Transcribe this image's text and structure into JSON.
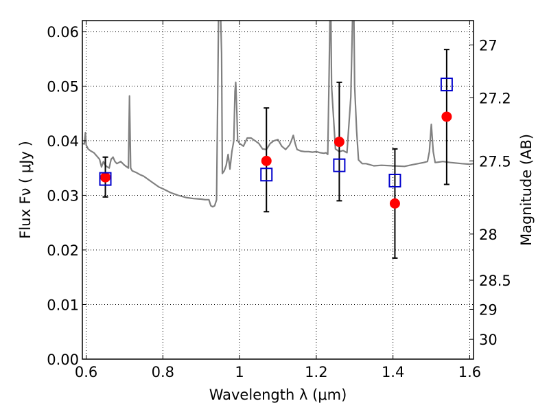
{
  "chart_data": {
    "type": "scatter",
    "xlabel": "Wavelength  λ (μm)",
    "ylabel": "Flux  Fν ( μJy )",
    "ylabel2": "Magnitude (AB)",
    "xlim": [
      0.59,
      1.61
    ],
    "ylim": [
      0.0,
      0.062
    ],
    "grid": true,
    "x_ticks": [
      0.6,
      0.8,
      1.0,
      1.2,
      1.4,
      1.6
    ],
    "x_tick_labels": [
      "0.6",
      "0.8",
      "1",
      "1.2",
      "1.4",
      "1.6"
    ],
    "y_ticks": [
      0.0,
      0.01,
      0.02,
      0.03,
      0.04,
      0.05,
      0.06
    ],
    "y_tick_labels": [
      "0.00",
      "0.01",
      "0.02",
      "0.03",
      "0.04",
      "0.05",
      "0.06"
    ],
    "mag_ticks": [
      27,
      27.2,
      27.5,
      28,
      28.5,
      29,
      30
    ],
    "mag_tick_labels": [
      "27",
      "27.2",
      "27.5",
      "28",
      "28.5",
      "29",
      "30"
    ],
    "observed": {
      "marker": "filled-circle",
      "color": "#ff0000",
      "x": [
        0.65,
        1.07,
        1.26,
        1.405,
        1.54
      ],
      "y": [
        0.0333,
        0.0363,
        0.0398,
        0.0285,
        0.0444
      ],
      "yerr_low": [
        0.0297,
        0.027,
        0.029,
        0.0185,
        0.032
      ],
      "yerr_high": [
        0.037,
        0.046,
        0.0507,
        0.0385,
        0.0567
      ]
    },
    "model_photometry": {
      "marker": "open-square",
      "color": "#0000cc",
      "x": [
        0.65,
        1.07,
        1.26,
        1.405,
        1.54
      ],
      "y": [
        0.033,
        0.0338,
        0.0355,
        0.0327,
        0.0503
      ]
    },
    "sed": {
      "color": "#808080",
      "x": [
        0.59,
        0.595,
        0.598,
        0.6,
        0.605,
        0.61,
        0.62,
        0.63,
        0.635,
        0.64,
        0.645,
        0.65,
        0.655,
        0.66,
        0.665,
        0.67,
        0.675,
        0.68,
        0.69,
        0.7,
        0.71,
        0.713,
        0.716,
        0.72,
        0.73,
        0.74,
        0.75,
        0.77,
        0.79,
        0.8,
        0.82,
        0.84,
        0.86,
        0.88,
        0.9,
        0.91,
        0.92,
        0.925,
        0.93,
        0.935,
        0.94,
        0.945,
        0.947,
        0.949,
        0.951,
        0.953,
        0.955,
        0.96,
        0.965,
        0.97,
        0.975,
        0.98,
        0.985,
        0.988,
        0.99,
        0.993,
        0.995,
        1.0,
        1.01,
        1.02,
        1.03,
        1.04,
        1.05,
        1.06,
        1.07,
        1.08,
        1.09,
        1.1,
        1.11,
        1.12,
        1.13,
        1.135,
        1.14,
        1.145,
        1.15,
        1.16,
        1.17,
        1.18,
        1.19,
        1.2,
        1.21,
        1.22,
        1.225,
        1.23,
        1.233,
        1.236,
        1.238,
        1.24,
        1.25,
        1.26,
        1.27,
        1.28,
        1.29,
        1.295,
        1.298,
        1.3,
        1.305,
        1.31,
        1.32,
        1.33,
        1.35,
        1.37,
        1.4,
        1.43,
        1.45,
        1.48,
        1.49,
        1.495,
        1.5,
        1.505,
        1.51,
        1.53,
        1.55,
        1.58,
        1.6,
        1.61
      ],
      "y": [
        0.0395,
        0.0394,
        0.0415,
        0.0392,
        0.0385,
        0.0382,
        0.0378,
        0.037,
        0.0366,
        0.0352,
        0.0362,
        0.0355,
        0.0352,
        0.035,
        0.0366,
        0.037,
        0.0362,
        0.0358,
        0.0362,
        0.0355,
        0.035,
        0.0482,
        0.035,
        0.0345,
        0.0342,
        0.0338,
        0.0335,
        0.0325,
        0.0315,
        0.0312,
        0.0305,
        0.03,
        0.0296,
        0.0294,
        0.0293,
        0.0292,
        0.0292,
        0.0281,
        0.0279,
        0.0281,
        0.0292,
        0.062,
        0.064,
        0.064,
        0.062,
        0.056,
        0.034,
        0.0345,
        0.0355,
        0.0375,
        0.0348,
        0.038,
        0.04,
        0.049,
        0.0507,
        0.045,
        0.04,
        0.0395,
        0.039,
        0.0405,
        0.0405,
        0.04,
        0.0395,
        0.0385,
        0.0384,
        0.0395,
        0.04,
        0.0402,
        0.039,
        0.0384,
        0.0392,
        0.04,
        0.041,
        0.0395,
        0.0384,
        0.0381,
        0.038,
        0.038,
        0.0379,
        0.038,
        0.0378,
        0.0377,
        0.0378,
        0.0375,
        0.05,
        0.064,
        0.064,
        0.05,
        0.0385,
        0.038,
        0.0382,
        0.0378,
        0.048,
        0.064,
        0.064,
        0.05,
        0.042,
        0.0365,
        0.0358,
        0.0358,
        0.0354,
        0.0355,
        0.0354,
        0.0353,
        0.0356,
        0.036,
        0.0362,
        0.038,
        0.043,
        0.038,
        0.036,
        0.0362,
        0.036,
        0.0358,
        0.0357,
        0.0358
      ]
    }
  }
}
